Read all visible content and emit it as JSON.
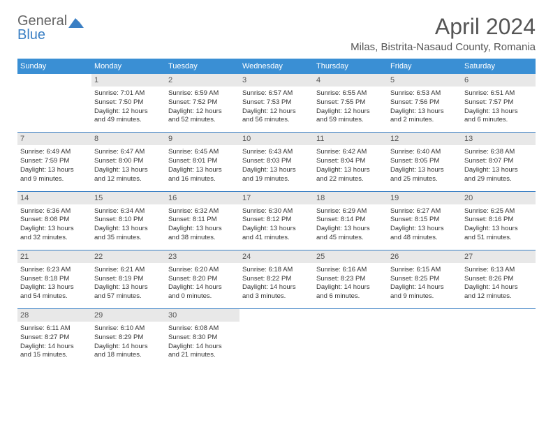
{
  "brand": {
    "line1": "General",
    "line2": "Blue"
  },
  "title": "April 2024",
  "location": "Milas, Bistrita-Nasaud County, Romania",
  "day_headers": [
    "Sunday",
    "Monday",
    "Tuesday",
    "Wednesday",
    "Thursday",
    "Friday",
    "Saturday"
  ],
  "colors": {
    "header_bg": "#3a8fd4",
    "accent": "#3a7fc4",
    "daynum_bg": "#e8e8e8",
    "text": "#333333",
    "muted": "#555555"
  },
  "weeks": [
    [
      null,
      {
        "n": "1",
        "sr": "Sunrise: 7:01 AM",
        "ss": "Sunset: 7:50 PM",
        "dl1": "Daylight: 12 hours",
        "dl2": "and 49 minutes."
      },
      {
        "n": "2",
        "sr": "Sunrise: 6:59 AM",
        "ss": "Sunset: 7:52 PM",
        "dl1": "Daylight: 12 hours",
        "dl2": "and 52 minutes."
      },
      {
        "n": "3",
        "sr": "Sunrise: 6:57 AM",
        "ss": "Sunset: 7:53 PM",
        "dl1": "Daylight: 12 hours",
        "dl2": "and 56 minutes."
      },
      {
        "n": "4",
        "sr": "Sunrise: 6:55 AM",
        "ss": "Sunset: 7:55 PM",
        "dl1": "Daylight: 12 hours",
        "dl2": "and 59 minutes."
      },
      {
        "n": "5",
        "sr": "Sunrise: 6:53 AM",
        "ss": "Sunset: 7:56 PM",
        "dl1": "Daylight: 13 hours",
        "dl2": "and 2 minutes."
      },
      {
        "n": "6",
        "sr": "Sunrise: 6:51 AM",
        "ss": "Sunset: 7:57 PM",
        "dl1": "Daylight: 13 hours",
        "dl2": "and 6 minutes."
      }
    ],
    [
      {
        "n": "7",
        "sr": "Sunrise: 6:49 AM",
        "ss": "Sunset: 7:59 PM",
        "dl1": "Daylight: 13 hours",
        "dl2": "and 9 minutes."
      },
      {
        "n": "8",
        "sr": "Sunrise: 6:47 AM",
        "ss": "Sunset: 8:00 PM",
        "dl1": "Daylight: 13 hours",
        "dl2": "and 12 minutes."
      },
      {
        "n": "9",
        "sr": "Sunrise: 6:45 AM",
        "ss": "Sunset: 8:01 PM",
        "dl1": "Daylight: 13 hours",
        "dl2": "and 16 minutes."
      },
      {
        "n": "10",
        "sr": "Sunrise: 6:43 AM",
        "ss": "Sunset: 8:03 PM",
        "dl1": "Daylight: 13 hours",
        "dl2": "and 19 minutes."
      },
      {
        "n": "11",
        "sr": "Sunrise: 6:42 AM",
        "ss": "Sunset: 8:04 PM",
        "dl1": "Daylight: 13 hours",
        "dl2": "and 22 minutes."
      },
      {
        "n": "12",
        "sr": "Sunrise: 6:40 AM",
        "ss": "Sunset: 8:05 PM",
        "dl1": "Daylight: 13 hours",
        "dl2": "and 25 minutes."
      },
      {
        "n": "13",
        "sr": "Sunrise: 6:38 AM",
        "ss": "Sunset: 8:07 PM",
        "dl1": "Daylight: 13 hours",
        "dl2": "and 29 minutes."
      }
    ],
    [
      {
        "n": "14",
        "sr": "Sunrise: 6:36 AM",
        "ss": "Sunset: 8:08 PM",
        "dl1": "Daylight: 13 hours",
        "dl2": "and 32 minutes."
      },
      {
        "n": "15",
        "sr": "Sunrise: 6:34 AM",
        "ss": "Sunset: 8:10 PM",
        "dl1": "Daylight: 13 hours",
        "dl2": "and 35 minutes."
      },
      {
        "n": "16",
        "sr": "Sunrise: 6:32 AM",
        "ss": "Sunset: 8:11 PM",
        "dl1": "Daylight: 13 hours",
        "dl2": "and 38 minutes."
      },
      {
        "n": "17",
        "sr": "Sunrise: 6:30 AM",
        "ss": "Sunset: 8:12 PM",
        "dl1": "Daylight: 13 hours",
        "dl2": "and 41 minutes."
      },
      {
        "n": "18",
        "sr": "Sunrise: 6:29 AM",
        "ss": "Sunset: 8:14 PM",
        "dl1": "Daylight: 13 hours",
        "dl2": "and 45 minutes."
      },
      {
        "n": "19",
        "sr": "Sunrise: 6:27 AM",
        "ss": "Sunset: 8:15 PM",
        "dl1": "Daylight: 13 hours",
        "dl2": "and 48 minutes."
      },
      {
        "n": "20",
        "sr": "Sunrise: 6:25 AM",
        "ss": "Sunset: 8:16 PM",
        "dl1": "Daylight: 13 hours",
        "dl2": "and 51 minutes."
      }
    ],
    [
      {
        "n": "21",
        "sr": "Sunrise: 6:23 AM",
        "ss": "Sunset: 8:18 PM",
        "dl1": "Daylight: 13 hours",
        "dl2": "and 54 minutes."
      },
      {
        "n": "22",
        "sr": "Sunrise: 6:21 AM",
        "ss": "Sunset: 8:19 PM",
        "dl1": "Daylight: 13 hours",
        "dl2": "and 57 minutes."
      },
      {
        "n": "23",
        "sr": "Sunrise: 6:20 AM",
        "ss": "Sunset: 8:20 PM",
        "dl1": "Daylight: 14 hours",
        "dl2": "and 0 minutes."
      },
      {
        "n": "24",
        "sr": "Sunrise: 6:18 AM",
        "ss": "Sunset: 8:22 PM",
        "dl1": "Daylight: 14 hours",
        "dl2": "and 3 minutes."
      },
      {
        "n": "25",
        "sr": "Sunrise: 6:16 AM",
        "ss": "Sunset: 8:23 PM",
        "dl1": "Daylight: 14 hours",
        "dl2": "and 6 minutes."
      },
      {
        "n": "26",
        "sr": "Sunrise: 6:15 AM",
        "ss": "Sunset: 8:25 PM",
        "dl1": "Daylight: 14 hours",
        "dl2": "and 9 minutes."
      },
      {
        "n": "27",
        "sr": "Sunrise: 6:13 AM",
        "ss": "Sunset: 8:26 PM",
        "dl1": "Daylight: 14 hours",
        "dl2": "and 12 minutes."
      }
    ],
    [
      {
        "n": "28",
        "sr": "Sunrise: 6:11 AM",
        "ss": "Sunset: 8:27 PM",
        "dl1": "Daylight: 14 hours",
        "dl2": "and 15 minutes."
      },
      {
        "n": "29",
        "sr": "Sunrise: 6:10 AM",
        "ss": "Sunset: 8:29 PM",
        "dl1": "Daylight: 14 hours",
        "dl2": "and 18 minutes."
      },
      {
        "n": "30",
        "sr": "Sunrise: 6:08 AM",
        "ss": "Sunset: 8:30 PM",
        "dl1": "Daylight: 14 hours",
        "dl2": "and 21 minutes."
      },
      null,
      null,
      null,
      null
    ]
  ]
}
